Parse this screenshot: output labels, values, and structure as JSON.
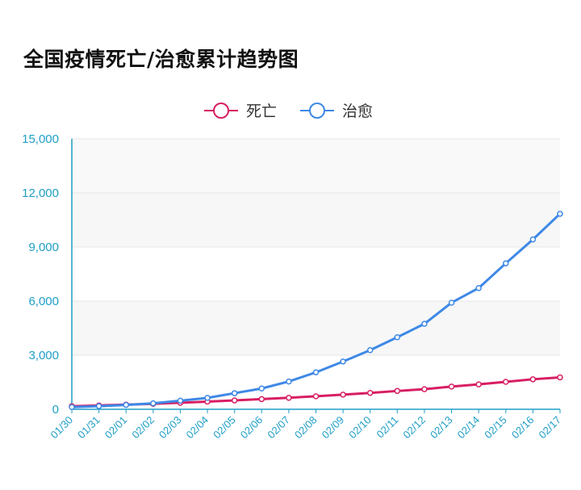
{
  "chart_data": {
    "type": "line",
    "title": "全国疫情死亡/治愈累计趋势图",
    "categories": [
      "01/30",
      "01/31",
      "02/01",
      "02/02",
      "02/03",
      "02/04",
      "02/05",
      "02/06",
      "02/07",
      "02/08",
      "02/09",
      "02/10",
      "02/11",
      "02/12",
      "02/13",
      "02/14",
      "02/15",
      "02/16",
      "02/17"
    ],
    "series": [
      {
        "name": "死亡",
        "color": "#d81e63",
        "values": [
          170,
          213,
          259,
          304,
          361,
          425,
          490,
          563,
          636,
          722,
          811,
          908,
          1016,
          1113,
          1259,
          1380,
          1523,
          1665,
          1770
        ]
      },
      {
        "name": "治愈",
        "color": "#3e88e6",
        "values": [
          124,
          171,
          243,
          328,
          475,
          632,
          892,
          1153,
          1540,
          2050,
          2649,
          3281,
          3996,
          4740,
          5911,
          6723,
          8096,
          9419,
          10844
        ]
      }
    ],
    "ylim": [
      0,
      15000
    ],
    "yticks": [
      "0",
      "3,000",
      "6,000",
      "9,000",
      "12,000",
      "15,000"
    ],
    "ytick_values": [
      0,
      3000,
      6000,
      9000,
      12000,
      15000
    ],
    "legend_position": "top-center",
    "grid": true,
    "colors": {
      "axis": "#1e9ec5",
      "grid": "#e6e6e6",
      "band": "#f7f7f7"
    }
  }
}
